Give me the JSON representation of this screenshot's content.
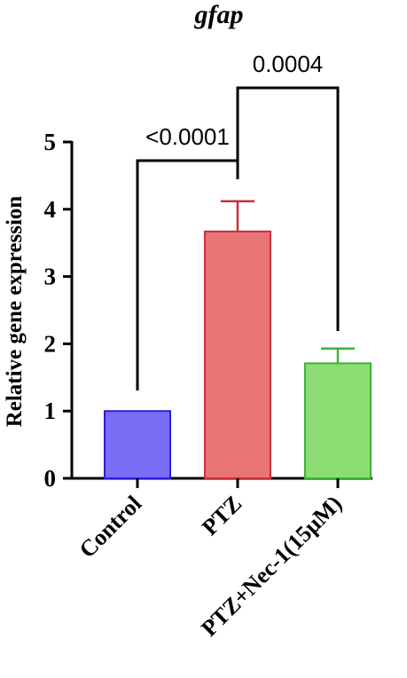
{
  "chart_data": {
    "type": "bar",
    "title": "gfap",
    "ylabel": "Relative gene expression",
    "xlabel": "",
    "categories": [
      "Control",
      "PTZ",
      "PTZ+Nec-1(15μM)"
    ],
    "values": [
      1.0,
      3.67,
      1.71
    ],
    "errors": [
      0.0,
      0.45,
      0.22
    ],
    "colors": [
      "#7b6cf6",
      "#e87474",
      "#8cdd73"
    ],
    "edge_colors": [
      "#2a20d8",
      "#c8303c",
      "#3bb43b"
    ],
    "ylim": [
      0,
      5
    ],
    "yticks": [
      "0",
      "1",
      "2",
      "3",
      "4",
      "5"
    ],
    "grid": false,
    "significance": [
      {
        "from": 0,
        "to": 1,
        "label": "<0.0001"
      },
      {
        "from": 1,
        "to": 2,
        "label": "0.0004"
      }
    ]
  }
}
